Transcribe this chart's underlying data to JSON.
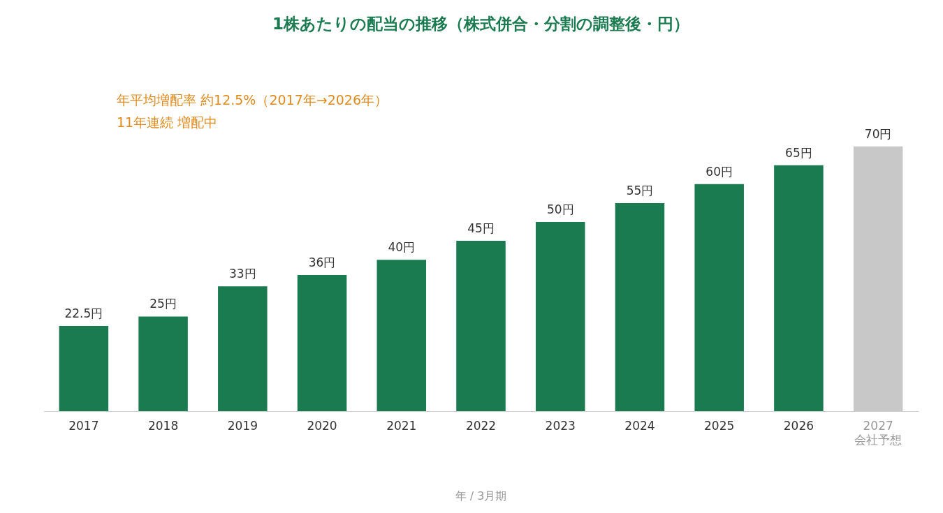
{
  "chart_data": {
    "type": "bar",
    "title": "1株あたりの配当の推移（株式併合・分割の調整後・円）",
    "xlabel": "年 / 3月期",
    "categories": [
      "2017",
      "2018",
      "2019",
      "2020",
      "2021",
      "2022",
      "2023",
      "2024",
      "2025",
      "2026",
      "2027\n会社予想"
    ],
    "values": [
      22.5,
      25,
      33,
      36,
      40,
      45,
      50,
      55,
      60,
      65,
      70
    ],
    "value_labels": [
      "22.5円",
      "25円",
      "33円",
      "36円",
      "40円",
      "45円",
      "50円",
      "55円",
      "60円",
      "65円",
      "70円"
    ],
    "colors": [
      "#1a7a50",
      "#1a7a50",
      "#1a7a50",
      "#1a7a50",
      "#1a7a50",
      "#1a7a50",
      "#1a7a50",
      "#1a7a50",
      "#1a7a50",
      "#1a7a50",
      "#c8c8c8"
    ],
    "annotations": [
      "年平均増配率 約12.5%（2017年→2026年）",
      "11年連続 増配中"
    ],
    "legend": false,
    "grid": false
  }
}
